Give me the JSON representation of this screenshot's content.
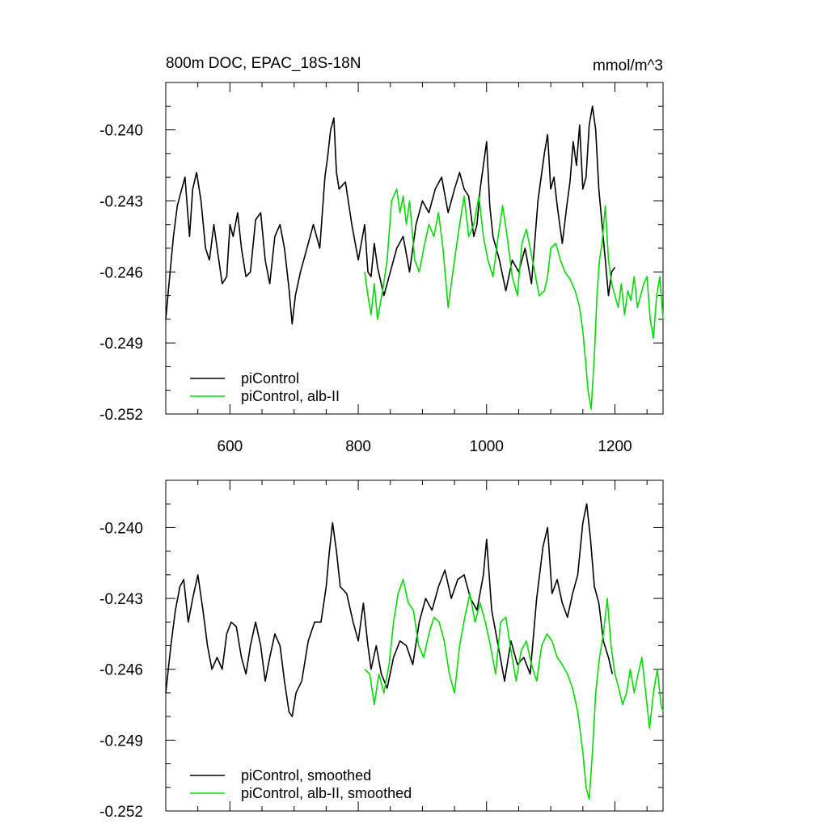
{
  "figure": {
    "title": "800m DOC, EPAC_18S-18N",
    "units": "mmol/m^3"
  },
  "chart_data": [
    {
      "type": "line",
      "panel": "top",
      "xlim": [
        500,
        1275
      ],
      "ylim": [
        -0.252,
        -0.238
      ],
      "xticks": [
        600,
        800,
        1000,
        1200
      ],
      "yticks": [
        -0.252,
        -0.249,
        -0.246,
        -0.243,
        -0.24
      ],
      "ytick_labels": [
        "-0.252",
        "-0.249",
        "-0.246",
        "-0.243",
        "-0.240"
      ],
      "xtick_labels": [
        "600",
        "800",
        "1000",
        "1200"
      ],
      "grid": false,
      "legend_position": "bottom-left",
      "series": [
        {
          "name": "piControl",
          "color": "#000000",
          "x": [
            500,
            505,
            512,
            518,
            525,
            530,
            537,
            542,
            548,
            555,
            562,
            568,
            575,
            580,
            588,
            595,
            600,
            605,
            612,
            618,
            625,
            632,
            640,
            648,
            655,
            662,
            670,
            678,
            685,
            692,
            697,
            702,
            710,
            720,
            730,
            740,
            748,
            752,
            757,
            762,
            766,
            770,
            780,
            790,
            800,
            810,
            815,
            820,
            825,
            830,
            840,
            850,
            860,
            870,
            880,
            890,
            900,
            910,
            920,
            930,
            940,
            950,
            958,
            965,
            972,
            980,
            985,
            990,
            995,
            1000,
            1005,
            1010,
            1020,
            1030,
            1040,
            1050,
            1060,
            1070,
            1080,
            1090,
            1095,
            1100,
            1105,
            1110,
            1118,
            1125,
            1130,
            1135,
            1140,
            1145,
            1150,
            1155,
            1160,
            1165,
            1170,
            1175,
            1180,
            1185,
            1190,
            1195,
            1200
          ],
          "y": [
            -0.248,
            -0.2465,
            -0.2445,
            -0.2432,
            -0.2425,
            -0.242,
            -0.2445,
            -0.2425,
            -0.2418,
            -0.243,
            -0.245,
            -0.2455,
            -0.244,
            -0.245,
            -0.2465,
            -0.2462,
            -0.244,
            -0.2445,
            -0.2435,
            -0.245,
            -0.2462,
            -0.246,
            -0.2438,
            -0.2435,
            -0.2455,
            -0.2465,
            -0.2445,
            -0.244,
            -0.245,
            -0.2467,
            -0.2482,
            -0.247,
            -0.246,
            -0.245,
            -0.244,
            -0.245,
            -0.242,
            -0.2412,
            -0.24,
            -0.2395,
            -0.2418,
            -0.2425,
            -0.2422,
            -0.244,
            -0.2455,
            -0.244,
            -0.246,
            -0.2462,
            -0.2448,
            -0.2458,
            -0.247,
            -0.246,
            -0.245,
            -0.2445,
            -0.246,
            -0.244,
            -0.243,
            -0.2435,
            -0.2425,
            -0.242,
            -0.2435,
            -0.2425,
            -0.2418,
            -0.2425,
            -0.2428,
            -0.2445,
            -0.244,
            -0.2425,
            -0.2415,
            -0.2405,
            -0.2432,
            -0.2445,
            -0.2455,
            -0.2468,
            -0.2455,
            -0.246,
            -0.245,
            -0.2465,
            -0.243,
            -0.241,
            -0.2402,
            -0.2425,
            -0.242,
            -0.2432,
            -0.2448,
            -0.2432,
            -0.2422,
            -0.2405,
            -0.2415,
            -0.2398,
            -0.2425,
            -0.242,
            -0.2398,
            -0.239,
            -0.24,
            -0.2425,
            -0.244,
            -0.2455,
            -0.247,
            -0.246,
            -0.2458
          ]
        },
        {
          "name": "piControl, alb-II",
          "color": "#00dd00",
          "x": [
            810,
            815,
            820,
            825,
            830,
            838,
            845,
            852,
            860,
            865,
            870,
            875,
            880,
            888,
            895,
            902,
            910,
            918,
            925,
            932,
            940,
            950,
            958,
            965,
            972,
            980,
            988,
            995,
            1002,
            1010,
            1018,
            1025,
            1032,
            1040,
            1048,
            1055,
            1062,
            1068,
            1075,
            1082,
            1090,
            1095,
            1100,
            1108,
            1115,
            1122,
            1130,
            1138,
            1145,
            1150,
            1155,
            1158,
            1163,
            1168,
            1172,
            1176,
            1180,
            1185,
            1190,
            1195,
            1200,
            1205,
            1210,
            1215,
            1220,
            1225,
            1230,
            1235,
            1240,
            1245,
            1250,
            1255,
            1260,
            1265,
            1270,
            1275
          ],
          "y": [
            -0.246,
            -0.247,
            -0.2478,
            -0.2465,
            -0.248,
            -0.2468,
            -0.2455,
            -0.243,
            -0.2425,
            -0.2435,
            -0.2428,
            -0.244,
            -0.243,
            -0.2455,
            -0.246,
            -0.245,
            -0.244,
            -0.2445,
            -0.2435,
            -0.245,
            -0.2475,
            -0.2455,
            -0.244,
            -0.2428,
            -0.2445,
            -0.244,
            -0.2428,
            -0.2445,
            -0.2455,
            -0.2462,
            -0.2445,
            -0.2432,
            -0.2445,
            -0.2462,
            -0.247,
            -0.2448,
            -0.2442,
            -0.245,
            -0.246,
            -0.247,
            -0.2468,
            -0.2462,
            -0.245,
            -0.2448,
            -0.2455,
            -0.246,
            -0.2463,
            -0.2468,
            -0.2475,
            -0.2485,
            -0.25,
            -0.251,
            -0.2518,
            -0.2495,
            -0.247,
            -0.2455,
            -0.2448,
            -0.2432,
            -0.2455,
            -0.2465,
            -0.247,
            -0.2475,
            -0.2465,
            -0.2478,
            -0.2468,
            -0.2472,
            -0.2462,
            -0.2475,
            -0.247,
            -0.2465,
            -0.2462,
            -0.248,
            -0.2488,
            -0.247,
            -0.2462,
            -0.248
          ]
        }
      ]
    },
    {
      "type": "line",
      "panel": "bottom",
      "xlim": [
        500,
        1275
      ],
      "ylim": [
        -0.252,
        -0.238
      ],
      "xticks": [
        600,
        800,
        1000,
        1200
      ],
      "yticks": [
        -0.252,
        -0.249,
        -0.246,
        -0.243,
        -0.24
      ],
      "ytick_labels": [
        "-0.252",
        "-0.249",
        "-0.246",
        "-0.243",
        "-0.240"
      ],
      "grid": false,
      "legend_position": "bottom-left",
      "series": [
        {
          "name": "piControl, smoothed",
          "color": "#000000",
          "x": [
            500,
            508,
            515,
            522,
            528,
            535,
            542,
            550,
            558,
            565,
            572,
            580,
            588,
            595,
            602,
            610,
            618,
            625,
            632,
            640,
            648,
            655,
            662,
            670,
            678,
            685,
            692,
            697,
            703,
            712,
            722,
            732,
            742,
            750,
            755,
            760,
            766,
            772,
            782,
            792,
            800,
            808,
            815,
            820,
            828,
            836,
            845,
            855,
            865,
            875,
            885,
            895,
            905,
            915,
            925,
            935,
            945,
            955,
            965,
            975,
            985,
            995,
            1000,
            1008,
            1018,
            1028,
            1038,
            1048,
            1058,
            1068,
            1078,
            1088,
            1095,
            1102,
            1110,
            1118,
            1126,
            1134,
            1142,
            1150,
            1156,
            1162,
            1168,
            1175,
            1182,
            1190,
            1196
          ],
          "y": [
            -0.247,
            -0.245,
            -0.2435,
            -0.2425,
            -0.2422,
            -0.244,
            -0.243,
            -0.242,
            -0.2435,
            -0.245,
            -0.246,
            -0.2455,
            -0.246,
            -0.2445,
            -0.244,
            -0.2442,
            -0.2455,
            -0.2462,
            -0.245,
            -0.244,
            -0.245,
            -0.2465,
            -0.2455,
            -0.2445,
            -0.245,
            -0.2465,
            -0.2478,
            -0.248,
            -0.247,
            -0.2465,
            -0.2448,
            -0.244,
            -0.244,
            -0.2425,
            -0.241,
            -0.2398,
            -0.241,
            -0.2425,
            -0.2428,
            -0.244,
            -0.2448,
            -0.2432,
            -0.245,
            -0.246,
            -0.245,
            -0.2462,
            -0.2468,
            -0.2455,
            -0.2448,
            -0.245,
            -0.2458,
            -0.244,
            -0.243,
            -0.2435,
            -0.2425,
            -0.2418,
            -0.243,
            -0.2422,
            -0.242,
            -0.243,
            -0.2435,
            -0.242,
            -0.2405,
            -0.2435,
            -0.245,
            -0.2465,
            -0.2448,
            -0.2458,
            -0.2455,
            -0.2462,
            -0.243,
            -0.2408,
            -0.24,
            -0.2428,
            -0.2422,
            -0.2432,
            -0.2438,
            -0.2428,
            -0.242,
            -0.2398,
            -0.239,
            -0.2405,
            -0.2425,
            -0.2432,
            -0.2448,
            -0.2455,
            -0.2462
          ]
        },
        {
          "name": "piControl, alb-II, smoothed",
          "color": "#00dd00",
          "x": [
            810,
            818,
            825,
            832,
            840,
            848,
            855,
            862,
            870,
            878,
            886,
            894,
            902,
            910,
            918,
            926,
            934,
            942,
            950,
            958,
            966,
            974,
            982,
            990,
            998,
            1006,
            1014,
            1022,
            1030,
            1038,
            1046,
            1054,
            1062,
            1070,
            1078,
            1086,
            1094,
            1102,
            1110,
            1118,
            1126,
            1134,
            1142,
            1150,
            1155,
            1160,
            1165,
            1170,
            1176,
            1182,
            1188,
            1194,
            1200,
            1206,
            1212,
            1218,
            1224,
            1230,
            1236,
            1242,
            1248,
            1254,
            1260,
            1266,
            1272,
            1275
          ],
          "y": [
            -0.246,
            -0.2462,
            -0.2475,
            -0.2462,
            -0.247,
            -0.2458,
            -0.244,
            -0.2428,
            -0.2422,
            -0.2432,
            -0.2435,
            -0.245,
            -0.2455,
            -0.2445,
            -0.2438,
            -0.244,
            -0.2448,
            -0.2462,
            -0.247,
            -0.245,
            -0.2438,
            -0.2428,
            -0.244,
            -0.2432,
            -0.244,
            -0.245,
            -0.2462,
            -0.244,
            -0.2438,
            -0.2452,
            -0.2465,
            -0.2452,
            -0.2448,
            -0.2458,
            -0.2465,
            -0.245,
            -0.2445,
            -0.2448,
            -0.2455,
            -0.2458,
            -0.2462,
            -0.2468,
            -0.2478,
            -0.2495,
            -0.251,
            -0.2515,
            -0.2495,
            -0.247,
            -0.2455,
            -0.2445,
            -0.243,
            -0.245,
            -0.2462,
            -0.2468,
            -0.2475,
            -0.247,
            -0.246,
            -0.247,
            -0.2462,
            -0.2455,
            -0.247,
            -0.2485,
            -0.247,
            -0.246,
            -0.2475,
            -0.2478
          ]
        }
      ]
    }
  ]
}
